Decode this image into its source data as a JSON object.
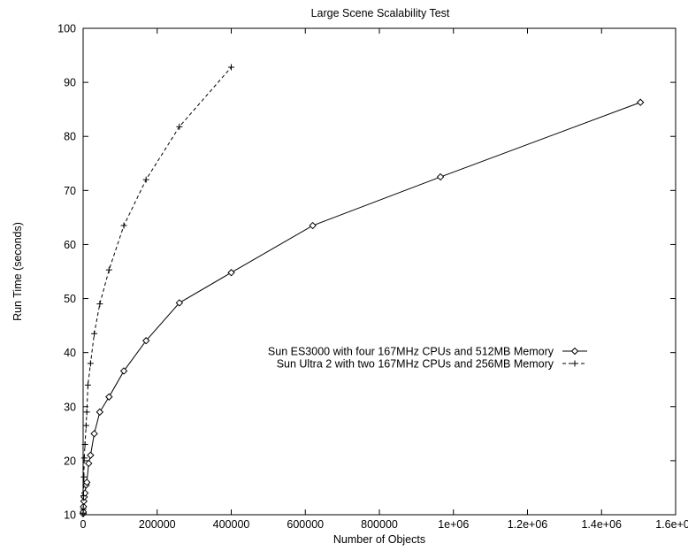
{
  "chart_data": {
    "type": "line",
    "title": "Large Scene Scalability Test",
    "xlabel": "Number of Objects",
    "ylabel": "Run Time (seconds)",
    "xlim": [
      0,
      1600000
    ],
    "ylim": [
      10,
      100
    ],
    "xticks": [
      {
        "value": 0,
        "label": "0"
      },
      {
        "value": 200000,
        "label": "200000"
      },
      {
        "value": 400000,
        "label": "400000"
      },
      {
        "value": 600000,
        "label": "600000"
      },
      {
        "value": 800000,
        "label": "800000"
      },
      {
        "value": 1000000,
        "label": "1e+06"
      },
      {
        "value": 1200000,
        "label": "1.2e+06"
      },
      {
        "value": 1400000,
        "label": "1.4e+06"
      },
      {
        "value": 1600000,
        "label": "1.6e+06"
      }
    ],
    "yticks": [
      {
        "value": 10,
        "label": "10"
      },
      {
        "value": 20,
        "label": "20"
      },
      {
        "value": 30,
        "label": "30"
      },
      {
        "value": 40,
        "label": "40"
      },
      {
        "value": 50,
        "label": "50"
      },
      {
        "value": 60,
        "label": "60"
      },
      {
        "value": 70,
        "label": "70"
      },
      {
        "value": 80,
        "label": "80"
      },
      {
        "value": 90,
        "label": "90"
      },
      {
        "value": 100,
        "label": "100"
      }
    ],
    "grid": false,
    "legend_position": "middle-right",
    "series": [
      {
        "name": "Sun ES3000 with four 167MHz CPUs and 512MB Memory",
        "marker": "diamond",
        "line_style": "solid",
        "color": "#000000",
        "points": [
          [
            0,
            10.2
          ],
          [
            500,
            10.5
          ],
          [
            1000,
            11.5
          ],
          [
            2000,
            12.5
          ],
          [
            3000,
            13.3
          ],
          [
            5000,
            14.0
          ],
          [
            8000,
            15.5
          ],
          [
            10000,
            16.0
          ],
          [
            15000,
            19.5
          ],
          [
            20000,
            21.0
          ],
          [
            30000,
            25.0
          ],
          [
            45000,
            29.0
          ],
          [
            70000,
            31.8
          ],
          [
            110000,
            36.6
          ],
          [
            170000,
            42.2
          ],
          [
            260000,
            49.2
          ],
          [
            400000,
            54.8
          ],
          [
            620000,
            63.5
          ],
          [
            965000,
            72.5
          ],
          [
            1505000,
            86.3
          ]
        ]
      },
      {
        "name": "Sun Ultra 2 with two 167MHz CPUs and 256MB Memory",
        "marker": "plus",
        "line_style": "dashed",
        "color": "#000000",
        "points": [
          [
            0,
            10.3
          ],
          [
            500,
            11.0
          ],
          [
            1000,
            13.5
          ],
          [
            2000,
            17.0
          ],
          [
            3000,
            20.5
          ],
          [
            5000,
            23.0
          ],
          [
            8000,
            26.5
          ],
          [
            10000,
            29.0
          ],
          [
            13000,
            34.0
          ],
          [
            20000,
            38.0
          ],
          [
            30000,
            43.5
          ],
          [
            45000,
            49.0
          ],
          [
            70000,
            55.3
          ],
          [
            110000,
            63.5
          ],
          [
            170000,
            72.0
          ],
          [
            260000,
            81.8
          ],
          [
            400000,
            92.8
          ]
        ]
      }
    ]
  }
}
